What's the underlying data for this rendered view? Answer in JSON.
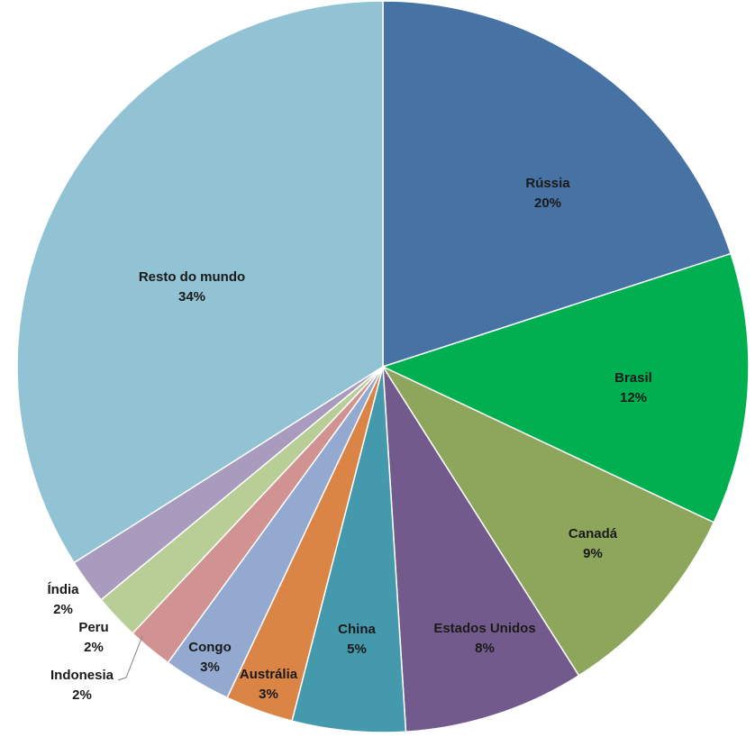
{
  "chart_data": {
    "type": "pie",
    "title": "",
    "slices": [
      {
        "name": "Rússia",
        "value": 20,
        "pct_label": "20%",
        "color": "#4672A4"
      },
      {
        "name": "Brasil",
        "value": 12,
        "pct_label": "12%",
        "color": "#00B050"
      },
      {
        "name": "Canadá",
        "value": 9,
        "pct_label": "9%",
        "color": "#8EA65C"
      },
      {
        "name": "Estados Unidos",
        "value": 8,
        "pct_label": "8%",
        "color": "#735A8C"
      },
      {
        "name": "China",
        "value": 5,
        "pct_label": "5%",
        "color": "#4599AC"
      },
      {
        "name": "Austrália",
        "value": 3,
        "pct_label": "3%",
        "color": "#DA8445"
      },
      {
        "name": "Congo",
        "value": 3,
        "pct_label": "3%",
        "color": "#93A9CF"
      },
      {
        "name": "Indonesia",
        "value": 2,
        "pct_label": "2%",
        "color": "#D19392"
      },
      {
        "name": "Peru",
        "value": 2,
        "pct_label": "2%",
        "color": "#B9CD96"
      },
      {
        "name": "Índia",
        "value": 2,
        "pct_label": "2%",
        "color": "#A99BBD"
      },
      {
        "name": "Resto do mundo",
        "value": 34,
        "pct_label": "34%",
        "color": "#92C3D4"
      }
    ]
  }
}
